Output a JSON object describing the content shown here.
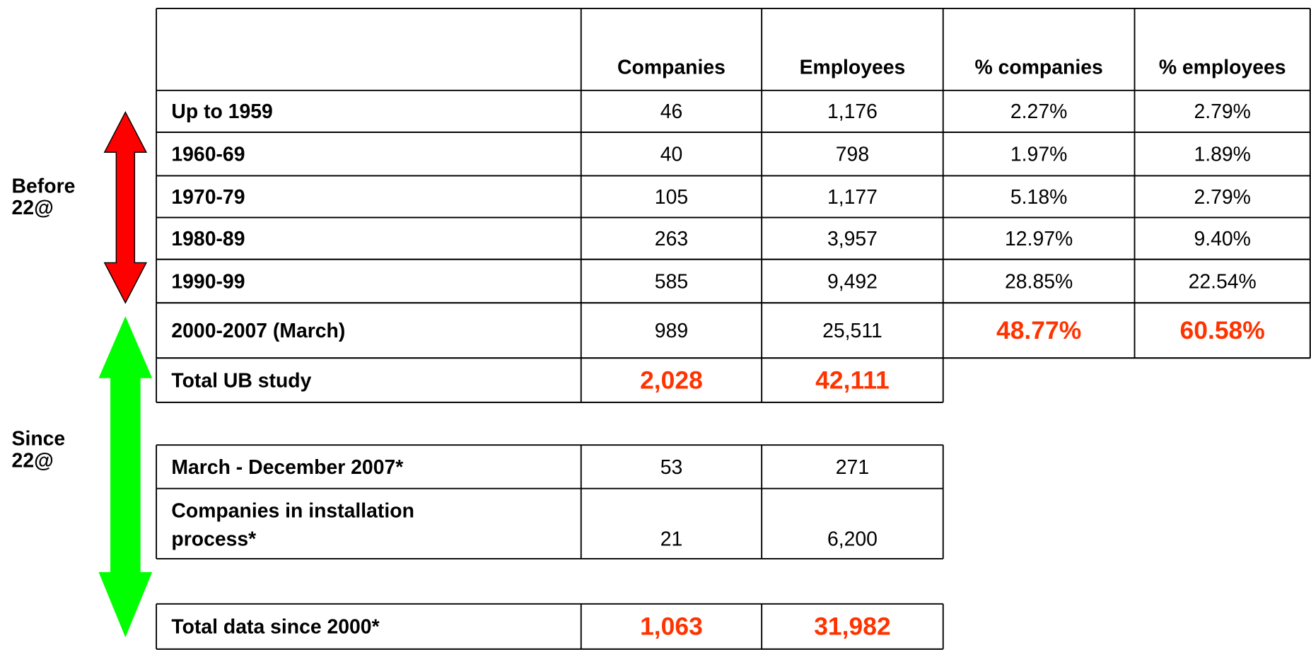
{
  "side_labels": {
    "before": [
      "Before",
      "22@"
    ],
    "since": [
      "Since",
      "22@"
    ]
  },
  "highlight_color": "#ff3300",
  "table": {
    "columns": [
      "Companies",
      "Employees",
      "% companies",
      "% employees"
    ],
    "rows": [
      {
        "label": "Up to 1959",
        "cells": [
          "46",
          "1,176",
          "2.27%",
          "2.79%"
        ],
        "highlight": []
      },
      {
        "label": "1960-69",
        "cells": [
          "40",
          "798",
          "1.97%",
          "1.89%"
        ],
        "highlight": []
      },
      {
        "label": "1970-79",
        "cells": [
          "105",
          "1,177",
          "5.18%",
          "2.79%"
        ],
        "highlight": []
      },
      {
        "label": "1980-89",
        "cells": [
          "263",
          "3,957",
          "12.97%",
          "9.40%"
        ],
        "highlight": []
      },
      {
        "label": "1990-99",
        "cells": [
          "585",
          "9,492",
          "28.85%",
          "22.54%"
        ],
        "highlight": []
      },
      {
        "label": "2000-2007 (March)",
        "cells": [
          "989",
          "25,511",
          "48.77%",
          "60.58%"
        ],
        "highlight": [
          2,
          3
        ]
      },
      {
        "label": "Total UB study",
        "cells": [
          "2,028",
          "42,111"
        ],
        "highlight": [
          0,
          1
        ]
      }
    ]
  },
  "table2": {
    "rows": [
      {
        "label": [
          "March - December 2007*"
        ],
        "cells": [
          "53",
          "271"
        ],
        "highlight": []
      },
      {
        "label": [
          "Companies in installation",
          "process*"
        ],
        "cells": [
          "21",
          "6,200"
        ],
        "highlight": []
      }
    ]
  },
  "table3": {
    "rows": [
      {
        "label": [
          "Total data since 2000*"
        ],
        "cells": [
          "1,063",
          "31,982"
        ],
        "highlight": [
          0,
          1
        ]
      }
    ]
  }
}
